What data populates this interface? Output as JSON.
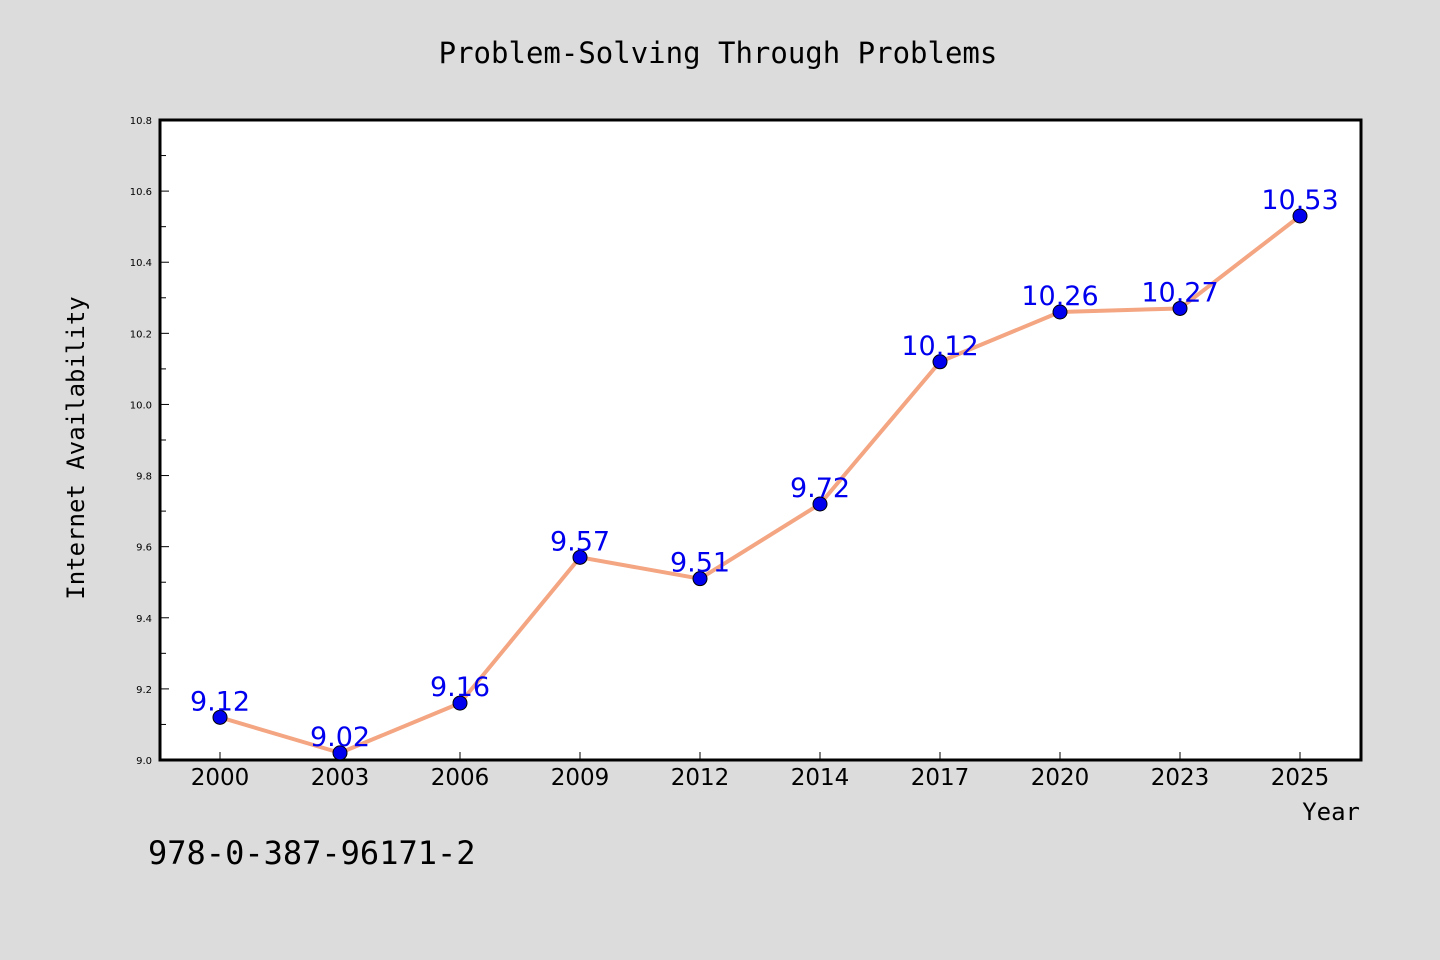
{
  "chart_data": {
    "type": "line",
    "title": "Problem-Solving Through Problems",
    "xlabel": "Year",
    "ylabel": "Internet Availability",
    "categories": [
      "2000",
      "2003",
      "2006",
      "2009",
      "2012",
      "2014",
      "2017",
      "2020",
      "2023",
      "2025"
    ],
    "series": [
      {
        "values": [
          9.12,
          9.02,
          9.16,
          9.57,
          9.51,
          9.72,
          10.12,
          10.26,
          10.27,
          10.53
        ],
        "data_labels": [
          "9.12",
          "9.02",
          "9.16",
          "9.57",
          "9.51",
          "9.72",
          "10.12",
          "10.26",
          "10.27",
          "10.53"
        ],
        "line_color": "#f4a582",
        "marker_color": "#0000ee",
        "label_color": "#0000ee"
      }
    ],
    "ylim": [
      9.0,
      10.8
    ],
    "yticks": [
      "9.0",
      "9.2",
      "9.4",
      "9.6",
      "9.8",
      "10.0",
      "10.2",
      "10.4",
      "10.6",
      "10.8"
    ],
    "grid": false,
    "legend": "none"
  },
  "annotation": {
    "isbn": "978-0-387-96171-2"
  },
  "colors": {
    "background": "#dcdcdc",
    "plot_area": "#ffffff",
    "axis": "#000000"
  }
}
